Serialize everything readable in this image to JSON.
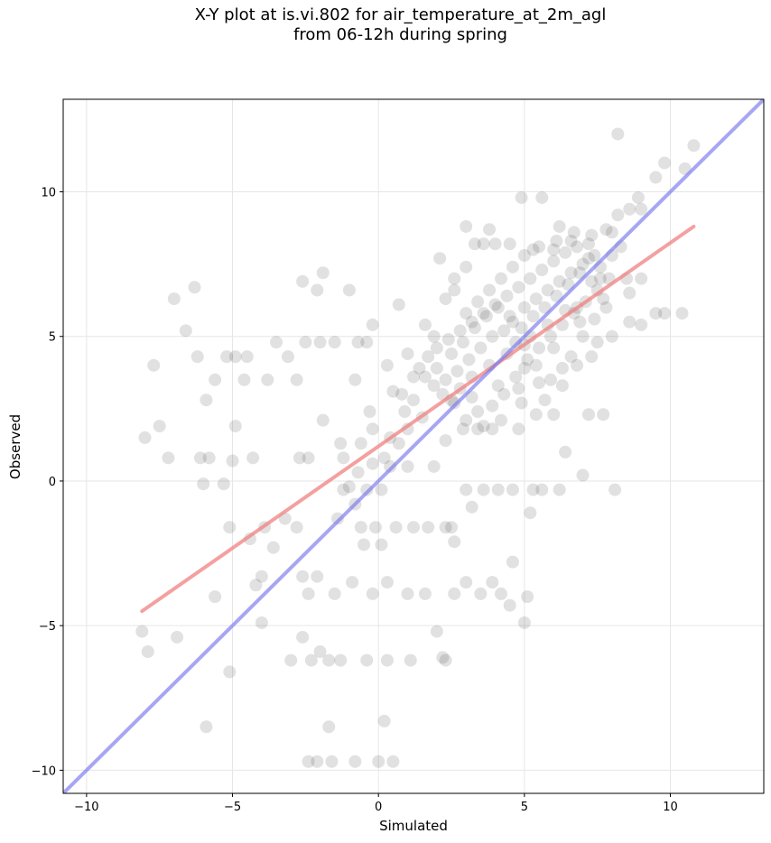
{
  "title_line1": "X-Y plot at is.vi.802 for air_temperature_at_2m_agl",
  "title_line2": "from 06-12h during spring",
  "chart_data": {
    "type": "scatter",
    "title": "X-Y plot at is.vi.802 for air_temperature_at_2m_agl from 06-12h during spring",
    "xlabel": "Simulated",
    "ylabel": "Observed",
    "xlim": [
      -10.8,
      13.2
    ],
    "ylim": [
      -10.8,
      13.2
    ],
    "xticks": [
      -10,
      -5,
      0,
      5,
      10
    ],
    "yticks": [
      -10,
      -5,
      0,
      5,
      10
    ],
    "xtick_labels": [
      "−10",
      "−5",
      "0",
      "5",
      "10"
    ],
    "ytick_labels": [
      "−10",
      "−5",
      "0",
      "5",
      "10"
    ],
    "grid": true,
    "point_color": "#333333",
    "point_alpha": 0.15,
    "points": [
      [
        -7.0,
        6.3
      ],
      [
        -6.6,
        5.2
      ],
      [
        -6.3,
        6.7
      ],
      [
        -6.2,
        4.3
      ],
      [
        -7.7,
        4.0
      ],
      [
        -8.0,
        1.5
      ],
      [
        -7.5,
        1.9
      ],
      [
        -7.2,
        0.8
      ],
      [
        -6.1,
        0.8
      ],
      [
        -5.8,
        0.8
      ],
      [
        -5.9,
        2.8
      ],
      [
        -5.6,
        3.5
      ],
      [
        -5.2,
        4.3
      ],
      [
        -4.9,
        4.3
      ],
      [
        -4.5,
        4.3
      ],
      [
        -4.6,
        3.5
      ],
      [
        -4.3,
        0.8
      ],
      [
        -3.8,
        3.5
      ],
      [
        -3.5,
        4.8
      ],
      [
        -3.1,
        4.3
      ],
      [
        -2.8,
        3.5
      ],
      [
        -2.6,
        6.9
      ],
      [
        -2.1,
        6.6
      ],
      [
        -1.9,
        7.2
      ],
      [
        -1.0,
        6.6
      ],
      [
        -2.5,
        4.8
      ],
      [
        -2.0,
        4.8
      ],
      [
        -1.5,
        4.8
      ],
      [
        -0.7,
        4.8
      ],
      [
        -0.4,
        4.8
      ],
      [
        -0.2,
        5.4
      ],
      [
        -0.8,
        3.5
      ],
      [
        -0.3,
        2.4
      ],
      [
        -1.3,
        1.3
      ],
      [
        -5.3,
        -0.1
      ],
      [
        -5.0,
        0.7
      ],
      [
        -4.9,
        1.9
      ],
      [
        -5.1,
        -1.6
      ],
      [
        -6.0,
        -0.1
      ],
      [
        -5.6,
        -4.0
      ],
      [
        -5.1,
        -6.6
      ],
      [
        -5.9,
        -8.5
      ],
      [
        -8.1,
        -5.2
      ],
      [
        -7.9,
        -5.9
      ],
      [
        -6.9,
        -5.4
      ],
      [
        -4.4,
        -2.0
      ],
      [
        -3.9,
        -1.6
      ],
      [
        -3.6,
        -2.3
      ],
      [
        -4.0,
        -3.3
      ],
      [
        -4.2,
        -3.6
      ],
      [
        -4.0,
        -4.9
      ],
      [
        -3.2,
        -1.3
      ],
      [
        -2.8,
        -1.6
      ],
      [
        -2.6,
        -3.3
      ],
      [
        -2.4,
        -3.9
      ],
      [
        -2.1,
        -3.3
      ],
      [
        -2.6,
        -5.4
      ],
      [
        -2.0,
        -5.9
      ],
      [
        -2.3,
        -6.2
      ],
      [
        -1.7,
        -6.2
      ],
      [
        -1.3,
        -6.2
      ],
      [
        -0.4,
        -6.2
      ],
      [
        0.3,
        -6.2
      ],
      [
        1.1,
        -6.2
      ],
      [
        2.2,
        -6.1
      ],
      [
        2.3,
        -6.2
      ],
      [
        2.0,
        -5.2
      ],
      [
        -1.7,
        -8.5
      ],
      [
        0.2,
        -8.3
      ],
      [
        -2.4,
        -9.7
      ],
      [
        -2.1,
        -9.7
      ],
      [
        -1.6,
        -9.7
      ],
      [
        -0.8,
        -9.7
      ],
      [
        0.0,
        -9.7
      ],
      [
        0.5,
        -9.7
      ],
      [
        -3.0,
        -6.2
      ],
      [
        -1.5,
        -3.9
      ],
      [
        -0.9,
        -3.5
      ],
      [
        -0.2,
        -3.9
      ],
      [
        0.3,
        -3.5
      ],
      [
        1.0,
        -3.9
      ],
      [
        1.6,
        -3.9
      ],
      [
        2.6,
        -3.9
      ],
      [
        3.0,
        -3.5
      ],
      [
        3.5,
        -3.9
      ],
      [
        3.9,
        -3.5
      ],
      [
        4.2,
        -3.9
      ],
      [
        4.5,
        -4.3
      ],
      [
        5.0,
        -4.9
      ],
      [
        5.1,
        -4.0
      ],
      [
        4.6,
        -2.8
      ],
      [
        2.6,
        -2.1
      ],
      [
        2.5,
        -1.6
      ],
      [
        3.2,
        -0.9
      ],
      [
        3.0,
        -0.3
      ],
      [
        3.6,
        -0.3
      ],
      [
        4.1,
        -0.3
      ],
      [
        4.6,
        -0.3
      ],
      [
        5.3,
        -0.3
      ],
      [
        5.6,
        -0.3
      ],
      [
        6.2,
        -0.3
      ],
      [
        7.0,
        0.2
      ],
      [
        8.1,
        -0.3
      ],
      [
        5.2,
        -1.1
      ],
      [
        6.4,
        1.0
      ],
      [
        7.7,
        2.3
      ],
      [
        7.2,
        2.3
      ],
      [
        6.0,
        2.3
      ],
      [
        5.4,
        2.3
      ],
      [
        4.8,
        1.8
      ],
      [
        3.9,
        1.8
      ],
      [
        3.4,
        1.8
      ],
      [
        2.9,
        1.8
      ],
      [
        2.3,
        1.4
      ],
      [
        1.9,
        0.5
      ],
      [
        1.0,
        0.5
      ],
      [
        0.4,
        0.5
      ],
      [
        0.1,
        -0.3
      ],
      [
        -0.4,
        -0.3
      ],
      [
        -0.8,
        -0.8
      ],
      [
        -1.2,
        -0.3
      ],
      [
        -0.6,
        -1.6
      ],
      [
        -0.1,
        -1.6
      ],
      [
        0.6,
        -1.6
      ],
      [
        1.2,
        -1.6
      ],
      [
        1.7,
        -1.6
      ],
      [
        2.3,
        -1.6
      ],
      [
        -0.5,
        -2.2
      ],
      [
        0.1,
        -2.2
      ],
      [
        -1.4,
        -1.3
      ],
      [
        -2.4,
        0.8
      ],
      [
        -2.7,
        0.8
      ],
      [
        -1.9,
        2.1
      ],
      [
        -1.2,
        0.8
      ],
      [
        -0.6,
        1.3
      ],
      [
        -0.2,
        1.8
      ],
      [
        0.2,
        0.8
      ],
      [
        0.7,
        1.3
      ],
      [
        0.9,
        2.4
      ],
      [
        0.5,
        3.1
      ],
      [
        0.3,
        4.0
      ],
      [
        1.2,
        3.6
      ],
      [
        1.0,
        4.4
      ],
      [
        0.7,
        6.1
      ],
      [
        1.6,
        5.4
      ],
      [
        1.9,
        5.0
      ],
      [
        2.1,
        7.7
      ],
      [
        2.3,
        6.3
      ],
      [
        2.6,
        6.6
      ],
      [
        2.6,
        7.0
      ],
      [
        3.0,
        7.4
      ],
      [
        3.3,
        8.2
      ],
      [
        3.0,
        8.8
      ],
      [
        3.6,
        8.2
      ],
      [
        3.8,
        8.7
      ],
      [
        4.0,
        8.2
      ],
      [
        4.5,
        8.2
      ],
      [
        4.9,
        9.8
      ],
      [
        5.6,
        9.8
      ],
      [
        6.2,
        8.8
      ],
      [
        6.6,
        8.3
      ],
      [
        7.2,
        8.2
      ],
      [
        7.8,
        8.7
      ],
      [
        8.2,
        9.2
      ],
      [
        8.6,
        9.4
      ],
      [
        8.9,
        9.8
      ],
      [
        9.0,
        9.4
      ],
      [
        9.5,
        10.5
      ],
      [
        9.8,
        11.0
      ],
      [
        10.5,
        10.8
      ],
      [
        10.8,
        11.6
      ],
      [
        8.2,
        12.0
      ],
      [
        9.5,
        5.8
      ],
      [
        9.8,
        5.8
      ],
      [
        10.4,
        5.8
      ],
      [
        9.0,
        5.4
      ],
      [
        8.6,
        6.5
      ],
      [
        8.5,
        7.0
      ],
      [
        9.0,
        7.0
      ],
      [
        8.6,
        5.5
      ],
      [
        8.0,
        5.0
      ],
      [
        7.5,
        4.8
      ],
      [
        7.3,
        4.3
      ],
      [
        6.8,
        4.0
      ],
      [
        6.3,
        3.9
      ],
      [
        5.9,
        3.5
      ],
      [
        5.5,
        3.4
      ],
      [
        5.0,
        3.9
      ],
      [
        4.7,
        3.6
      ],
      [
        4.3,
        3.0
      ],
      [
        3.9,
        2.6
      ],
      [
        3.4,
        2.4
      ],
      [
        3.0,
        2.1
      ],
      [
        2.6,
        2.7
      ],
      [
        2.2,
        3.0
      ],
      [
        1.9,
        3.3
      ],
      [
        1.6,
        3.6
      ],
      [
        1.4,
        3.9
      ],
      [
        1.7,
        4.3
      ],
      [
        2.0,
        4.6
      ],
      [
        2.4,
        4.9
      ],
      [
        2.8,
        5.2
      ],
      [
        3.2,
        5.5
      ],
      [
        3.6,
        5.8
      ],
      [
        4.0,
        6.1
      ],
      [
        4.4,
        6.4
      ],
      [
        4.8,
        6.7
      ],
      [
        5.2,
        7.0
      ],
      [
        5.6,
        7.3
      ],
      [
        6.0,
        7.6
      ],
      [
        6.4,
        7.9
      ],
      [
        6.8,
        8.1
      ],
      [
        7.2,
        7.7
      ],
      [
        7.6,
        7.4
      ],
      [
        7.9,
        7.0
      ],
      [
        7.5,
        6.6
      ],
      [
        7.1,
        6.2
      ],
      [
        6.7,
        5.8
      ],
      [
        6.3,
        5.4
      ],
      [
        5.9,
        5.0
      ],
      [
        5.5,
        4.6
      ],
      [
        5.1,
        4.2
      ],
      [
        4.7,
        4.8
      ],
      [
        4.3,
        5.2
      ],
      [
        3.9,
        5.0
      ],
      [
        3.5,
        4.6
      ],
      [
        3.1,
        4.2
      ],
      [
        2.7,
        3.8
      ],
      [
        2.3,
        3.5
      ],
      [
        2.0,
        3.9
      ],
      [
        2.5,
        4.4
      ],
      [
        2.9,
        4.8
      ],
      [
        3.3,
        5.3
      ],
      [
        3.7,
        5.7
      ],
      [
        4.1,
        6.0
      ],
      [
        4.5,
        5.7
      ],
      [
        4.9,
        5.3
      ],
      [
        5.3,
        5.7
      ],
      [
        5.7,
        6.0
      ],
      [
        6.1,
        6.4
      ],
      [
        6.5,
        6.8
      ],
      [
        6.9,
        7.2
      ],
      [
        7.3,
        6.9
      ],
      [
        7.7,
        6.3
      ],
      [
        8.0,
        7.8
      ],
      [
        6.0,
        8.0
      ],
      [
        5.5,
        8.1
      ],
      [
        5.0,
        7.8
      ],
      [
        4.6,
        7.4
      ],
      [
        4.2,
        7.0
      ],
      [
        3.8,
        6.6
      ],
      [
        3.4,
        6.2
      ],
      [
        3.0,
        5.8
      ],
      [
        5.0,
        6.0
      ],
      [
        5.4,
        6.3
      ],
      [
        5.8,
        6.6
      ],
      [
        6.2,
        6.9
      ],
      [
        6.6,
        7.2
      ],
      [
        7.0,
        7.5
      ],
      [
        7.4,
        7.8
      ],
      [
        5.8,
        5.4
      ],
      [
        6.4,
        5.9
      ],
      [
        6.9,
        5.5
      ],
      [
        5.2,
        5.0
      ],
      [
        4.4,
        4.4
      ],
      [
        3.8,
        4.0
      ],
      [
        3.2,
        3.6
      ],
      [
        2.8,
        3.2
      ],
      [
        2.5,
        2.8
      ],
      [
        4.1,
        3.3
      ],
      [
        4.8,
        3.2
      ],
      [
        5.4,
        4.0
      ],
      [
        6.0,
        4.6
      ],
      [
        6.6,
        4.3
      ],
      [
        7.0,
        5.0
      ],
      [
        7.4,
        5.6
      ],
      [
        7.8,
        6.0
      ],
      [
        4.9,
        2.7
      ],
      [
        4.2,
        2.1
      ],
      [
        3.6,
        1.9
      ],
      [
        3.2,
        2.9
      ],
      [
        5.7,
        2.8
      ],
      [
        6.3,
        3.3
      ],
      [
        5.0,
        4.7
      ],
      [
        4.6,
        5.5
      ],
      [
        6.8,
        6.0
      ],
      [
        7.6,
        7.0
      ],
      [
        8.3,
        8.1
      ],
      [
        8.0,
        8.6
      ],
      [
        7.3,
        8.5
      ],
      [
        6.7,
        8.6
      ],
      [
        6.1,
        8.3
      ],
      [
        5.3,
        8.0
      ],
      [
        1.2,
        2.8
      ],
      [
        0.8,
        3.0
      ],
      [
        1.5,
        2.2
      ],
      [
        1.0,
        1.8
      ],
      [
        0.4,
        1.5
      ],
      [
        -0.2,
        0.6
      ],
      [
        -0.7,
        0.3
      ],
      [
        -1.0,
        -0.2
      ]
    ],
    "regression_line": {
      "color": "#f08080",
      "x": [
        -8.1,
        10.8
      ],
      "y": [
        -4.5,
        8.8
      ]
    },
    "identity_line": {
      "color": "#7777ee",
      "x": [
        -10.8,
        13.2
      ],
      "y": [
        -10.8,
        13.2
      ]
    }
  }
}
